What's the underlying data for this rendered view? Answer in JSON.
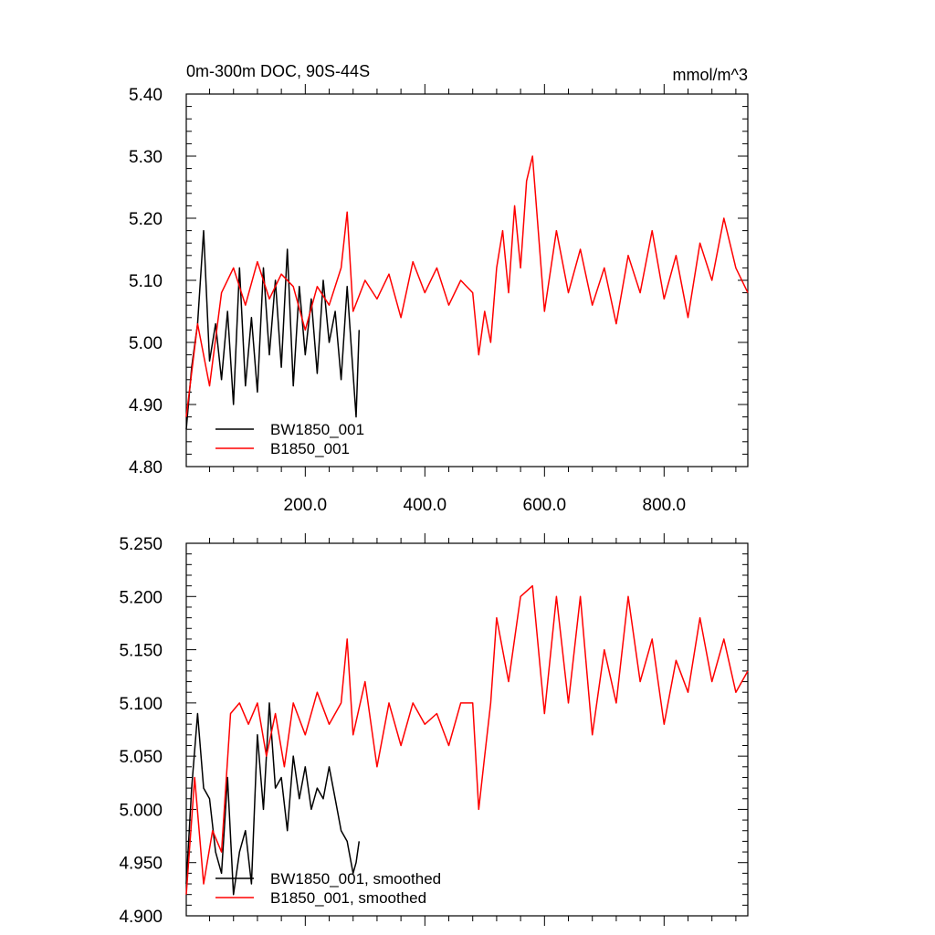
{
  "chart_data": [
    {
      "type": "line",
      "title": "0m-300m DOC, 90S-44S",
      "units": "mmol/m^3",
      "xlabel": "",
      "ylabel": "",
      "xlim": [
        1,
        940
      ],
      "ylim": [
        4.8,
        5.4
      ],
      "yticks": [
        "4.80",
        "4.90",
        "5.00",
        "5.10",
        "5.20",
        "5.30",
        "5.40"
      ],
      "xticks": [
        "200.0",
        "400.0",
        "600.0",
        "800.0"
      ],
      "legend": "bottom-left",
      "series": [
        {
          "name": "BW1850_001",
          "color": "#000000",
          "x": [
            1,
            10,
            20,
            30,
            40,
            50,
            60,
            70,
            80,
            90,
            100,
            110,
            120,
            130,
            140,
            150,
            160,
            170,
            180,
            190,
            200,
            210,
            220,
            230,
            240,
            250,
            260,
            270,
            280,
            285,
            290
          ],
          "y": [
            4.86,
            4.96,
            5.03,
            5.18,
            4.97,
            5.03,
            4.94,
            5.05,
            4.9,
            5.12,
            4.93,
            5.04,
            4.92,
            5.12,
            4.98,
            5.1,
            4.96,
            5.15,
            4.93,
            5.09,
            4.98,
            5.07,
            4.95,
            5.1,
            5.0,
            5.05,
            4.94,
            5.09,
            4.95,
            4.88,
            5.02
          ]
        },
        {
          "name": "B1850_001",
          "color": "#ff0000",
          "x": [
            1,
            20,
            40,
            60,
            80,
            100,
            120,
            140,
            160,
            180,
            200,
            220,
            240,
            260,
            270,
            280,
            300,
            320,
            340,
            360,
            380,
            400,
            420,
            440,
            460,
            480,
            490,
            500,
            510,
            520,
            530,
            540,
            550,
            560,
            570,
            580,
            600,
            620,
            640,
            660,
            680,
            700,
            720,
            740,
            760,
            780,
            800,
            820,
            840,
            860,
            880,
            900,
            920,
            940
          ],
          "y": [
            4.88,
            5.03,
            4.93,
            5.08,
            5.12,
            5.06,
            5.13,
            5.07,
            5.11,
            5.09,
            5.02,
            5.09,
            5.06,
            5.12,
            5.21,
            5.05,
            5.1,
            5.07,
            5.11,
            5.04,
            5.13,
            5.08,
            5.12,
            5.06,
            5.1,
            5.08,
            4.98,
            5.05,
            5.0,
            5.12,
            5.18,
            5.08,
            5.22,
            5.12,
            5.26,
            5.3,
            5.05,
            5.18,
            5.08,
            5.15,
            5.06,
            5.12,
            5.03,
            5.14,
            5.08,
            5.18,
            5.07,
            5.14,
            5.04,
            5.16,
            5.1,
            5.2,
            5.12,
            5.08
          ]
        }
      ]
    },
    {
      "type": "line",
      "title": "",
      "xlabel": "",
      "ylabel": "",
      "xlim": [
        1,
        940
      ],
      "ylim": [
        4.9,
        5.25
      ],
      "yticks": [
        "4.900",
        "4.950",
        "5.000",
        "5.050",
        "5.100",
        "5.150",
        "5.200",
        "5.250"
      ],
      "xticks": [],
      "legend": "bottom-left",
      "series": [
        {
          "name": "BW1850_001, smoothed",
          "color": "#000000",
          "x": [
            1,
            10,
            20,
            30,
            40,
            50,
            60,
            70,
            80,
            90,
            100,
            110,
            120,
            130,
            140,
            150,
            160,
            170,
            180,
            190,
            200,
            210,
            220,
            230,
            240,
            250,
            260,
            270,
            280,
            285,
            290
          ],
          "y": [
            4.93,
            5.02,
            5.09,
            5.02,
            5.01,
            4.96,
            4.94,
            5.03,
            4.92,
            4.96,
            4.98,
            4.93,
            5.07,
            5.0,
            5.1,
            5.02,
            5.03,
            4.98,
            5.05,
            5.01,
            5.04,
            5.0,
            5.02,
            5.01,
            5.04,
            5.01,
            4.98,
            4.97,
            4.94,
            4.95,
            4.97
          ]
        },
        {
          "name": "B1850_001, smoothed",
          "color": "#ff0000",
          "x": [
            1,
            15,
            30,
            45,
            60,
            75,
            90,
            105,
            120,
            135,
            150,
            165,
            180,
            200,
            220,
            240,
            260,
            270,
            280,
            300,
            320,
            340,
            360,
            380,
            400,
            420,
            440,
            460,
            480,
            490,
            500,
            510,
            520,
            540,
            560,
            580,
            600,
            620,
            640,
            660,
            680,
            700,
            720,
            740,
            760,
            780,
            800,
            820,
            840,
            860,
            880,
            900,
            920,
            940
          ],
          "y": [
            4.92,
            5.03,
            4.93,
            4.98,
            4.96,
            5.09,
            5.1,
            5.08,
            5.1,
            5.05,
            5.09,
            5.04,
            5.1,
            5.07,
            5.11,
            5.08,
            5.1,
            5.16,
            5.07,
            5.12,
            5.04,
            5.1,
            5.06,
            5.1,
            5.08,
            5.09,
            5.06,
            5.1,
            5.1,
            5.0,
            5.05,
            5.1,
            5.18,
            5.12,
            5.2,
            5.21,
            5.09,
            5.2,
            5.1,
            5.2,
            5.07,
            5.15,
            5.1,
            5.2,
            5.12,
            5.16,
            5.08,
            5.14,
            5.11,
            5.18,
            5.12,
            5.16,
            5.11,
            5.13
          ]
        }
      ]
    }
  ]
}
